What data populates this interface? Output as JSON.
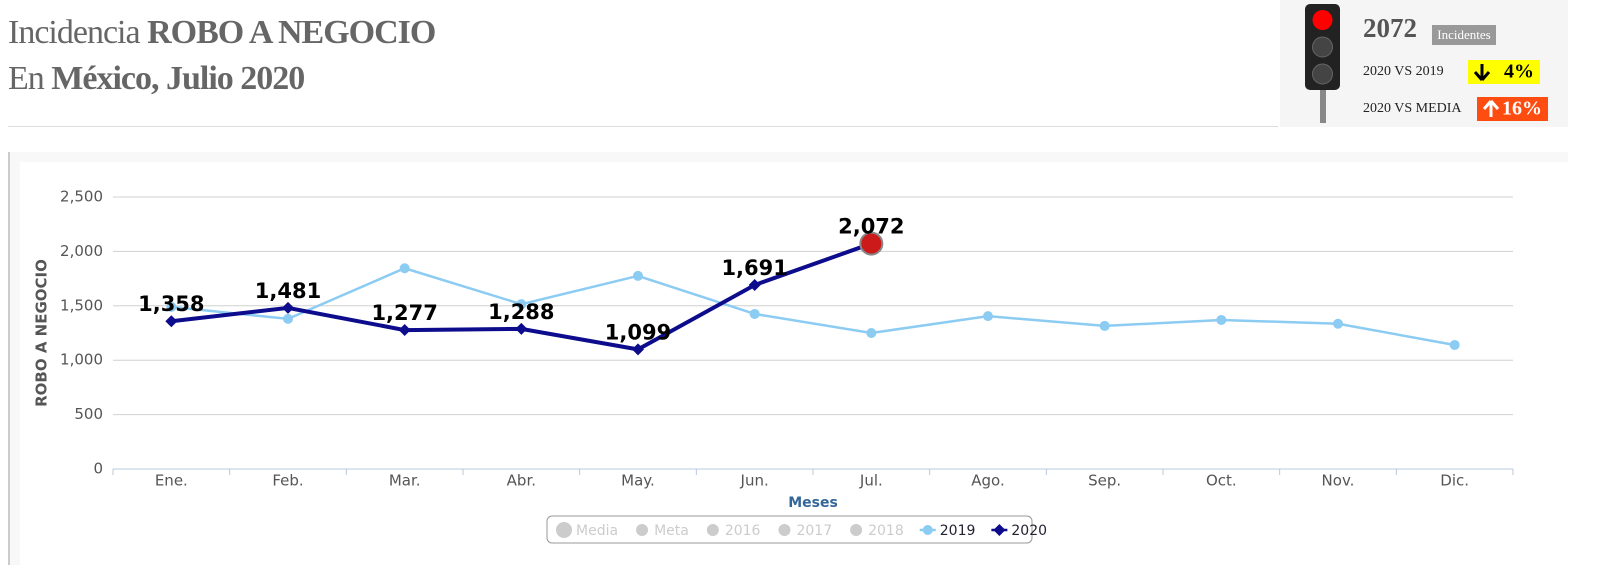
{
  "header": {
    "title_prefix": "Incidencia",
    "title_bold": "ROBO A NEGOCIO",
    "subtitle_prefix": "En",
    "subtitle_place": "México",
    "subtitle_rest": ", Julio 2020"
  },
  "summary": {
    "total": "2072",
    "total_label": "Incidentes",
    "comparisons": [
      {
        "label": "2020 VS 2019",
        "value": "4%",
        "direction": "down",
        "color": "#ffff00"
      },
      {
        "label": "2020 VS MEDIA",
        "value": "16%",
        "direction": "up",
        "color": "#ff4d12"
      }
    ]
  },
  "chart_data": {
    "type": "line",
    "ylabel": "ROBO A NEGOCIO",
    "xlabel": "Meses",
    "categories": [
      "Ene.",
      "Feb.",
      "Mar.",
      "Abr.",
      "May.",
      "Jun.",
      "Jul.",
      "Ago.",
      "Sep.",
      "Oct.",
      "Nov.",
      "Dic."
    ],
    "series": [
      {
        "name": "2019",
        "color": "#8ccbf2",
        "marker": "circle",
        "values": [
          1490,
          1380,
          1845,
          1515,
          1775,
          1425,
          1250,
          1405,
          1315,
          1370,
          1335,
          1140
        ]
      },
      {
        "name": "2020",
        "color": "#0c0c8c",
        "marker": "diamond",
        "values": [
          1358,
          1481,
          1277,
          1288,
          1099,
          1691,
          2072,
          null,
          null,
          null,
          null,
          null
        ],
        "value_labels": [
          "1,358",
          "1,481",
          "1,277",
          "1,288",
          "1,099",
          "1,691",
          "2,072",
          null,
          null,
          null,
          null,
          null
        ],
        "last_marker_color": "#cc1a1a"
      }
    ],
    "legend_hidden": [
      "Media",
      "Meta",
      "2016",
      "2017",
      "2018"
    ],
    "ylim": [
      0,
      2500
    ],
    "yticks": [
      0,
      500,
      {
        "value": 1000,
        "label": "1,000"
      },
      {
        "value": 1500,
        "label": "1,500"
      },
      {
        "value": 2000,
        "label": "2,000"
      },
      {
        "value": 2500,
        "label": "2,500"
      }
    ],
    "grid": true
  }
}
